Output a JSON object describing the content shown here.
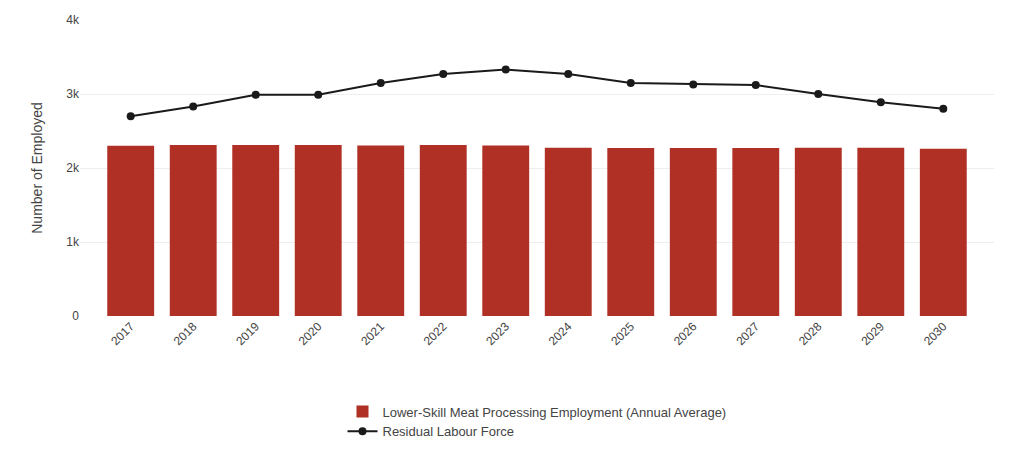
{
  "chart_data": {
    "type": "bar",
    "categories": [
      "2017",
      "2018",
      "2019",
      "2020",
      "2021",
      "2022",
      "2023",
      "2024",
      "2025",
      "2026",
      "2027",
      "2028",
      "2029",
      "2030"
    ],
    "series": [
      {
        "name": "Lower-Skill Meat Processing Employment (Annual Average)",
        "type": "bar",
        "color": "#B03025",
        "values": [
          2300,
          2310,
          2310,
          2310,
          2305,
          2310,
          2305,
          2275,
          2270,
          2270,
          2270,
          2275,
          2275,
          2260
        ]
      },
      {
        "name": "Residual Labour Force",
        "type": "line",
        "color": "#1a1a1a",
        "marker": "circle",
        "values": [
          2700,
          2830,
          2990,
          2990,
          3150,
          3270,
          3330,
          3270,
          3150,
          3130,
          3120,
          3000,
          2890,
          2800
        ]
      }
    ],
    "ylabel": "Number of Employed",
    "ylim": [
      0,
      4000
    ],
    "yticks": [
      0,
      {
        "value": 1000,
        "label": "1k"
      },
      {
        "value": 2000,
        "label": "2k"
      },
      {
        "value": 3000,
        "label": "3k"
      },
      {
        "value": 4000,
        "label": "4k"
      }
    ],
    "grid": true,
    "legend": "bottom"
  }
}
